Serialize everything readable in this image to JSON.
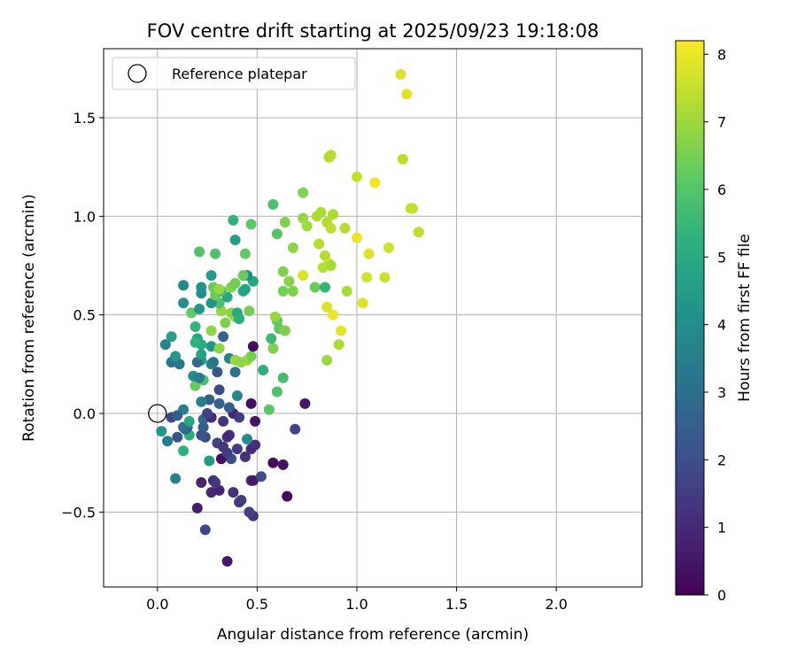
{
  "chart_data": {
    "type": "scatter",
    "title": "FOV centre drift starting at 2025/09/23 19:18:08",
    "xlabel": "Angular distance from reference (arcmin)",
    "ylabel": "Rotation from reference (arcmin)",
    "xlim": [
      -0.27,
      2.43
    ],
    "ylim": [
      -0.88,
      1.85
    ],
    "xticks": [
      0.0,
      0.5,
      1.0,
      1.5,
      2.0
    ],
    "xtick_labels": [
      "0.0",
      "0.5",
      "1.0",
      "1.5",
      "2.0"
    ],
    "yticks": [
      -0.5,
      0.0,
      0.5,
      1.0,
      1.5
    ],
    "ytick_labels": [
      "−0.5",
      "0.0",
      "0.5",
      "1.0",
      "1.5"
    ],
    "grid": true,
    "legend": {
      "placement": "top-left",
      "entries": [
        "Reference platepar"
      ]
    },
    "reference_point": {
      "x": 0.0,
      "y": 0.0,
      "label": "Reference platepar"
    },
    "colorbar": {
      "label": "Hours from first FF file",
      "colormap": "viridis",
      "range": [
        0,
        8.2
      ],
      "ticks": [
        0,
        1,
        2,
        3,
        4,
        5,
        6,
        7,
        8
      ],
      "tick_labels": [
        "0",
        "1",
        "2",
        "3",
        "4",
        "5",
        "6",
        "7",
        "8"
      ]
    },
    "series": [
      {
        "name": "FOV centre",
        "points": [
          [
            0.35,
            -0.75,
            0.6
          ],
          [
            0.24,
            -0.59,
            1.8
          ],
          [
            0.2,
            -0.48,
            0.7
          ],
          [
            0.48,
            -0.52,
            1.3
          ],
          [
            0.46,
            -0.5,
            1.6
          ],
          [
            0.42,
            -0.44,
            1.4
          ],
          [
            0.41,
            -0.45,
            1.5
          ],
          [
            0.65,
            -0.42,
            0.2
          ],
          [
            0.38,
            -0.4,
            1.2
          ],
          [
            0.27,
            -0.4,
            0.9
          ],
          [
            0.31,
            -0.39,
            0.8
          ],
          [
            0.22,
            -0.35,
            0.8
          ],
          [
            0.28,
            -0.34,
            1.1
          ],
          [
            0.29,
            -0.35,
            1.3
          ],
          [
            0.47,
            -0.34,
            1.1
          ],
          [
            0.48,
            -0.34,
            0.6
          ],
          [
            0.52,
            -0.32,
            2.0
          ],
          [
            0.09,
            -0.33,
            3.5
          ],
          [
            0.58,
            -0.25,
            0.3
          ],
          [
            0.63,
            -0.26,
            0.4
          ],
          [
            0.26,
            -0.24,
            4.5
          ],
          [
            0.32,
            -0.23,
            0.4
          ],
          [
            0.37,
            -0.23,
            2.0
          ],
          [
            0.44,
            -0.22,
            1.2
          ],
          [
            0.47,
            -0.18,
            1.0
          ],
          [
            0.49,
            -0.16,
            1.0
          ],
          [
            0.35,
            -0.2,
            1.5
          ],
          [
            0.4,
            -0.18,
            1.4
          ],
          [
            0.13,
            -0.19,
            5.2
          ],
          [
            0.3,
            -0.15,
            1.7
          ],
          [
            0.35,
            -0.12,
            1.1
          ],
          [
            0.45,
            -0.13,
            4.0
          ],
          [
            0.36,
            -0.11,
            1.0
          ],
          [
            0.33,
            -0.17,
            1.3
          ],
          [
            0.24,
            -0.12,
            1.9
          ],
          [
            0.22,
            -0.11,
            2.1
          ],
          [
            0.16,
            -0.11,
            5.2
          ],
          [
            0.1,
            -0.12,
            2.2
          ],
          [
            0.05,
            -0.14,
            3.4
          ],
          [
            0.02,
            -0.09,
            4.3
          ],
          [
            0.15,
            -0.07,
            2.6
          ],
          [
            0.14,
            -0.08,
            2.7
          ],
          [
            0.13,
            -0.07,
            3.0
          ],
          [
            0.23,
            -0.07,
            2.4
          ],
          [
            0.23,
            -0.03,
            2.8
          ],
          [
            0.27,
            -0.02,
            1.0
          ],
          [
            0.25,
            0.0,
            1.6
          ],
          [
            0.33,
            -0.04,
            1.2
          ],
          [
            0.38,
            0.0,
            0.9
          ],
          [
            0.41,
            -0.02,
            1.5
          ],
          [
            0.49,
            -0.04,
            0.5
          ],
          [
            0.47,
            0.05,
            0.3
          ],
          [
            0.56,
            0.02,
            6.1
          ],
          [
            0.69,
            -0.08,
            1.7
          ],
          [
            0.74,
            0.05,
            0.5
          ],
          [
            0.13,
            0.02,
            3.6
          ],
          [
            0.07,
            -0.02,
            1.8
          ],
          [
            0.1,
            -0.01,
            2.5
          ],
          [
            0.16,
            -0.04,
            5.0
          ],
          [
            0.31,
            0.05,
            2.6
          ],
          [
            0.36,
            0.03,
            2.4
          ],
          [
            0.26,
            0.07,
            2.5
          ],
          [
            0.22,
            0.06,
            3.5
          ],
          [
            0.4,
            0.09,
            3.7
          ],
          [
            0.6,
            0.11,
            5.9
          ],
          [
            0.31,
            0.12,
            1.9
          ],
          [
            0.19,
            0.14,
            6.3
          ],
          [
            0.23,
            0.17,
            5.8
          ],
          [
            0.63,
            0.18,
            5.7
          ],
          [
            0.18,
            0.19,
            4.0
          ],
          [
            0.21,
            0.18,
            3.4
          ],
          [
            0.39,
            0.21,
            3.1
          ],
          [
            0.3,
            0.21,
            2.2
          ],
          [
            0.53,
            0.22,
            5.2
          ],
          [
            0.27,
            0.25,
            3.9
          ],
          [
            0.22,
            0.27,
            4.6
          ],
          [
            0.28,
            0.26,
            3.2
          ],
          [
            0.09,
            0.27,
            3.2
          ],
          [
            0.11,
            0.25,
            3.2
          ],
          [
            0.07,
            0.26,
            3.1
          ],
          [
            0.09,
            0.29,
            4.5
          ],
          [
            0.2,
            0.26,
            2.9
          ],
          [
            0.22,
            0.3,
            4.7
          ],
          [
            0.36,
            0.28,
            3.7
          ],
          [
            0.39,
            0.27,
            6.9
          ],
          [
            0.42,
            0.26,
            6.8
          ],
          [
            0.45,
            0.27,
            6.9
          ],
          [
            0.47,
            0.29,
            6.5
          ],
          [
            0.58,
            0.33,
            6.6
          ],
          [
            0.27,
            0.34,
            4.4
          ],
          [
            0.31,
            0.33,
            6.8
          ],
          [
            0.22,
            0.35,
            5.1
          ],
          [
            0.2,
            0.38,
            4.8
          ],
          [
            0.19,
            0.36,
            5.3
          ],
          [
            0.04,
            0.35,
            3.7
          ],
          [
            0.07,
            0.39,
            4.7
          ],
          [
            0.33,
            0.39,
            2.6
          ],
          [
            0.48,
            0.34,
            0.3
          ],
          [
            0.57,
            0.38,
            5.6
          ],
          [
            0.27,
            0.42,
            6.8
          ],
          [
            0.19,
            0.44,
            5.3
          ],
          [
            0.34,
            0.46,
            6.6
          ],
          [
            0.39,
            0.49,
            6.9
          ],
          [
            0.37,
            0.51,
            6.8
          ],
          [
            0.4,
            0.51,
            5.0
          ],
          [
            0.41,
            0.48,
            5.2
          ],
          [
            0.61,
            0.43,
            6.3
          ],
          [
            0.6,
            0.47,
            6.1
          ],
          [
            0.64,
            0.42,
            6.6
          ],
          [
            0.59,
            0.49,
            6.9
          ],
          [
            0.46,
            0.52,
            6.5
          ],
          [
            0.32,
            0.52,
            6.9
          ],
          [
            0.17,
            0.51,
            6.2
          ],
          [
            0.21,
            0.53,
            4.4
          ],
          [
            0.13,
            0.56,
            4.1
          ],
          [
            0.31,
            0.56,
            5.8
          ],
          [
            0.27,
            0.56,
            4.3
          ],
          [
            0.35,
            0.59,
            4.9
          ],
          [
            0.29,
            0.6,
            6.4
          ],
          [
            0.22,
            0.61,
            4.1
          ],
          [
            0.28,
            0.64,
            6.4
          ],
          [
            0.32,
            0.62,
            5.6
          ],
          [
            0.37,
            0.64,
            6.6
          ],
          [
            0.43,
            0.62,
            5.0
          ],
          [
            0.44,
            0.63,
            4.7
          ],
          [
            0.39,
            0.66,
            6.4
          ],
          [
            0.31,
            0.63,
            6.9
          ],
          [
            0.13,
            0.65,
            3.9
          ],
          [
            0.22,
            0.64,
            4.2
          ],
          [
            0.48,
            0.67,
            5.0
          ],
          [
            0.45,
            0.7,
            3.8
          ],
          [
            0.43,
            0.7,
            6.3
          ],
          [
            0.27,
            0.7,
            4.5
          ],
          [
            0.21,
            0.82,
            5.9
          ],
          [
            0.29,
            0.81,
            5.9
          ],
          [
            0.44,
            0.81,
            6.2
          ],
          [
            0.39,
            0.88,
            4.6
          ],
          [
            0.38,
            0.98,
            5.3
          ],
          [
            0.47,
            0.96,
            6.1
          ],
          [
            0.6,
            0.91,
            6.0
          ],
          [
            0.58,
            1.06,
            5.8
          ],
          [
            0.64,
            0.97,
            6.6
          ],
          [
            0.63,
            0.72,
            6.6
          ],
          [
            0.66,
            0.67,
            6.7
          ],
          [
            0.68,
            0.62,
            6.6
          ],
          [
            0.63,
            0.62,
            6.5
          ],
          [
            0.68,
            0.84,
            6.8
          ],
          [
            0.73,
            0.99,
            6.9
          ],
          [
            0.75,
            0.95,
            7.0
          ],
          [
            0.73,
            0.7,
            7.8
          ],
          [
            0.73,
            1.12,
            6.6
          ],
          [
            0.8,
            1.0,
            7.2
          ],
          [
            0.82,
            1.02,
            7.2
          ],
          [
            0.85,
            0.97,
            7.3
          ],
          [
            0.87,
            0.94,
            7.4
          ],
          [
            0.88,
            1.01,
            7.2
          ],
          [
            0.81,
            0.86,
            7.3
          ],
          [
            0.84,
            0.8,
            7.3
          ],
          [
            0.86,
            0.76,
            7.6
          ],
          [
            0.83,
            0.74,
            7.3
          ],
          [
            0.87,
            0.75,
            7.1
          ],
          [
            0.79,
            0.64,
            6.3
          ],
          [
            0.84,
            0.64,
            5.4
          ],
          [
            0.85,
            0.54,
            7.8
          ],
          [
            0.88,
            0.5,
            8.0
          ],
          [
            0.92,
            0.42,
            7.9
          ],
          [
            0.85,
            0.27,
            7.0
          ],
          [
            0.91,
            0.35,
            7.2
          ],
          [
            0.95,
            0.62,
            7.1
          ],
          [
            0.94,
            0.94,
            7.3
          ],
          [
            1.0,
            0.89,
            8.0
          ],
          [
            1.03,
            0.56,
            7.8
          ],
          [
            1.05,
            0.69,
            7.7
          ],
          [
            1.06,
            0.81,
            7.8
          ],
          [
            1.14,
            0.69,
            7.6
          ],
          [
            1.16,
            0.84,
            7.6
          ],
          [
            1.09,
            1.17,
            8.1
          ],
          [
            1.0,
            1.2,
            7.5
          ],
          [
            0.86,
            1.3,
            7.3
          ],
          [
            0.87,
            1.31,
            7.3
          ],
          [
            1.23,
            1.29,
            7.4
          ],
          [
            1.27,
            1.04,
            7.5
          ],
          [
            1.28,
            1.04,
            7.5
          ],
          [
            1.31,
            0.92,
            7.5
          ],
          [
            1.22,
            1.72,
            7.8
          ],
          [
            1.25,
            1.62,
            7.9
          ]
        ]
      }
    ]
  }
}
